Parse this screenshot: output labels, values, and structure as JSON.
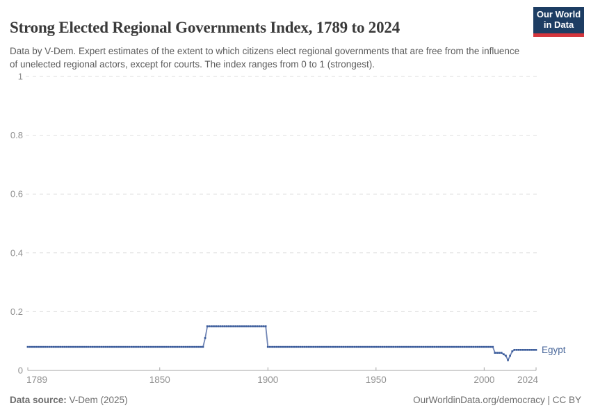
{
  "header": {
    "title": "Strong Elected Regional Governments Index, 1789 to 2024",
    "subtitle": "Data by V-Dem. Expert estimates of the extent to which citizens elect regional governments that are free from the influence of unelected regional actors, except for courts. The index ranges from 0 to 1 (strongest).",
    "logo": {
      "line1": "Our World",
      "line2": "in Data",
      "bg": "#1d3d63",
      "accent": "#d4353c"
    }
  },
  "chart_data": {
    "type": "line",
    "title": "Strong Elected Regional Governments Index, 1789 to 2024",
    "xlim": [
      1789,
      2024
    ],
    "ylim": [
      0,
      1
    ],
    "x_ticks": [
      1789,
      1850,
      1900,
      1950,
      2000,
      2024
    ],
    "y_ticks": [
      0,
      0.2,
      0.4,
      0.6,
      0.8,
      1
    ],
    "grid": "horizontal-dashed",
    "legend_position": "line-end-label",
    "marker_style": "square-per-year",
    "colors": {
      "line": "#7085b5",
      "marker": "#3b5c9b",
      "label": "#4c6a9c",
      "grid": "#dedede",
      "axis": "#a5a5a5",
      "tick_text": "#8f8f8f"
    },
    "series": [
      {
        "name": "Egypt",
        "keypoints": [
          [
            1789,
            0.08
          ],
          [
            1870,
            0.08
          ],
          [
            1871,
            0.11
          ],
          [
            1872,
            0.15
          ],
          [
            1899,
            0.15
          ],
          [
            1900,
            0.08
          ],
          [
            2004,
            0.08
          ],
          [
            2005,
            0.06
          ],
          [
            2008,
            0.06
          ],
          [
            2009,
            0.055
          ],
          [
            2010,
            0.05
          ],
          [
            2011,
            0.035
          ],
          [
            2012,
            0.05
          ],
          [
            2013,
            0.065
          ],
          [
            2014,
            0.07
          ],
          [
            2024,
            0.07
          ]
        ]
      }
    ]
  },
  "footer": {
    "source_label": "Data source:",
    "source_value": " V-Dem (2025)",
    "credit_link": "OurWorldinData.org/democracy",
    "credit_license": " | CC BY"
  }
}
